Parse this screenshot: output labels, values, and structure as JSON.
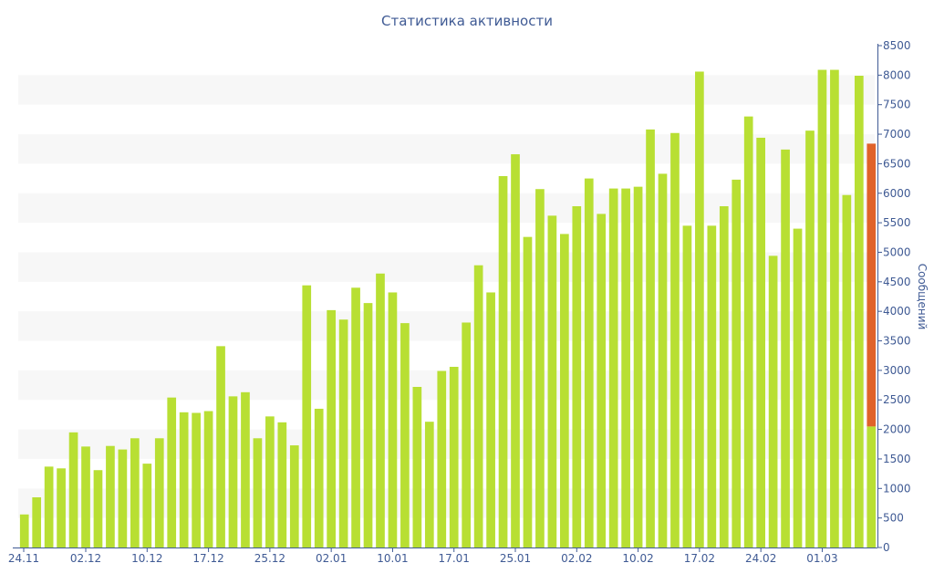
{
  "colors": {
    "bar": "#b8df33",
    "highlight": "#e0622a",
    "band": "#f7f7f7",
    "axis": "#3f5a94",
    "text": "#3f5a94"
  },
  "chart_data": {
    "type": "bar",
    "title": "Статистика активности",
    "ylabel": "Сообщений",
    "xlabel": "",
    "ylim": [
      0,
      8500
    ],
    "y_axis_position": "right",
    "y_ticks": [
      0,
      500,
      1000,
      1500,
      2000,
      2500,
      3000,
      3500,
      4000,
      4500,
      5000,
      5500,
      6000,
      6500,
      7000,
      7500,
      8000,
      8500
    ],
    "x_tick_labels": [
      {
        "index": 0,
        "label": "24.11"
      },
      {
        "index": 5,
        "label": "02.12"
      },
      {
        "index": 10,
        "label": "10.12"
      },
      {
        "index": 15,
        "label": "17.12"
      },
      {
        "index": 20,
        "label": "25.12"
      },
      {
        "index": 25,
        "label": "02.01"
      },
      {
        "index": 30,
        "label": "10.01"
      },
      {
        "index": 35,
        "label": "17.01"
      },
      {
        "index": 40,
        "label": "25.01"
      },
      {
        "index": 45,
        "label": "02.02"
      },
      {
        "index": 50,
        "label": "10.02"
      },
      {
        "index": 55,
        "label": "17.02"
      },
      {
        "index": 60,
        "label": "24.02"
      },
      {
        "index": 65,
        "label": "01.03"
      }
    ],
    "values": [
      560,
      850,
      1370,
      1340,
      1950,
      1710,
      1310,
      1720,
      1660,
      1850,
      1420,
      1850,
      2540,
      2290,
      2280,
      2310,
      3410,
      2560,
      2630,
      1850,
      2220,
      2120,
      1730,
      4440,
      2350,
      4020,
      3860,
      4400,
      4140,
      4640,
      4320,
      3800,
      2720,
      2130,
      2990,
      3060,
      3810,
      4780,
      4320,
      6290,
      6660,
      5260,
      6070,
      5620,
      5310,
      5780,
      6250,
      5650,
      6080,
      6080,
      6110,
      7080,
      6330,
      7020,
      5450,
      8060,
      5450,
      5780,
      6230,
      7300,
      6940,
      4940,
      6740,
      5400,
      7060,
      8090,
      8090,
      5970,
      7990,
      2050
    ],
    "highlight": {
      "index": 69,
      "base": 2050,
      "top": 6840
    }
  }
}
